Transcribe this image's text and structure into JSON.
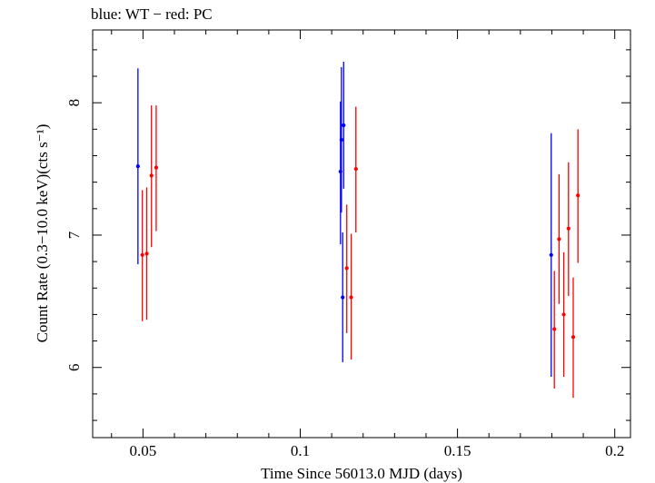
{
  "chart_data": {
    "type": "scatter",
    "title": "blue: WT − red: PC",
    "xlabel": "Time Since 56013.0 MJD (days)",
    "ylabel": "Count Rate (0.3−10.0 keV)(cts s⁻¹)",
    "xlim": [
      0.034,
      0.205
    ],
    "ylim": [
      5.47,
      8.55
    ],
    "x_ticks": [
      {
        "value": 0.05,
        "label": "0.05"
      },
      {
        "value": 0.1,
        "label": "0.1"
      },
      {
        "value": 0.15,
        "label": "0.15"
      },
      {
        "value": 0.2,
        "label": "0.2"
      }
    ],
    "y_ticks": [
      {
        "value": 6,
        "label": "6"
      },
      {
        "value": 7,
        "label": "7"
      },
      {
        "value": 8,
        "label": "8"
      }
    ],
    "grid": false,
    "legend": "none",
    "series": [
      {
        "color": "#0000ff",
        "points": [
          {
            "x": 0.0484,
            "y": 7.52,
            "ylo": 6.78,
            "yhi": 8.26
          },
          {
            "x": 0.1128,
            "y": 7.48,
            "ylo": 6.93,
            "yhi": 8.01
          },
          {
            "x": 0.1131,
            "y": 7.72,
            "ylo": 7.17,
            "yhi": 8.27
          },
          {
            "x": 0.1135,
            "y": 6.53,
            "ylo": 6.04,
            "yhi": 7.02
          },
          {
            "x": 0.1138,
            "y": 7.83,
            "ylo": 7.35,
            "yhi": 8.31
          },
          {
            "x": 0.1798,
            "y": 6.85,
            "ylo": 5.93,
            "yhi": 7.77
          }
        ]
      },
      {
        "color": "#ff0000",
        "points": [
          {
            "x": 0.0498,
            "y": 6.85,
            "ylo": 6.35,
            "yhi": 7.34
          },
          {
            "x": 0.0512,
            "y": 6.86,
            "ylo": 6.36,
            "yhi": 7.36
          },
          {
            "x": 0.0527,
            "y": 7.45,
            "ylo": 6.91,
            "yhi": 7.98
          },
          {
            "x": 0.0542,
            "y": 7.51,
            "ylo": 7.03,
            "yhi": 7.98
          },
          {
            "x": 0.1148,
            "y": 6.75,
            "ylo": 6.26,
            "yhi": 7.23
          },
          {
            "x": 0.1162,
            "y": 6.53,
            "ylo": 6.06,
            "yhi": 7.01
          },
          {
            "x": 0.1177,
            "y": 7.5,
            "ylo": 7.02,
            "yhi": 7.97
          },
          {
            "x": 0.1808,
            "y": 6.29,
            "ylo": 5.84,
            "yhi": 6.73
          },
          {
            "x": 0.1823,
            "y": 6.97,
            "ylo": 6.48,
            "yhi": 7.46
          },
          {
            "x": 0.1838,
            "y": 6.4,
            "ylo": 5.93,
            "yhi": 6.87
          },
          {
            "x": 0.1853,
            "y": 7.05,
            "ylo": 6.54,
            "yhi": 7.55
          },
          {
            "x": 0.1868,
            "y": 6.23,
            "ylo": 5.77,
            "yhi": 6.68
          },
          {
            "x": 0.1883,
            "y": 7.3,
            "ylo": 6.79,
            "yhi": 7.8
          }
        ]
      }
    ]
  }
}
